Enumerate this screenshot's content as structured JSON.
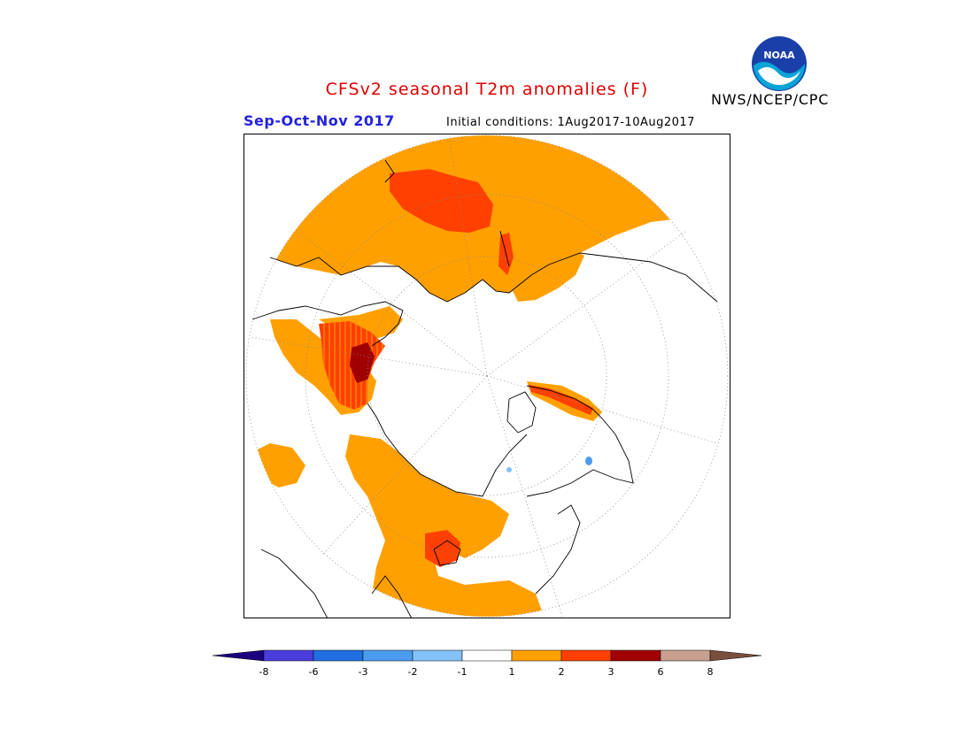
{
  "header": {
    "title": "CFSv2 seasonal T2m anomalies (F)",
    "season": "Sep-Oct-Nov 2017",
    "initial_conditions": "Initial conditions: 1Aug2017-10Aug2017",
    "agency": "NWS/NCEP/CPC",
    "logo_text": "NOAA"
  },
  "map": {
    "projection": "north-polar-stereographic",
    "variable": "2m temperature anomaly",
    "units": "F"
  },
  "colorbar": {
    "tick_labels": [
      "-8",
      "-6",
      "-3",
      "-2",
      "-1",
      "1",
      "2",
      "3",
      "6",
      "8"
    ],
    "colors": {
      "lt_-8": "#1a0080",
      "-8_-6": "#4b3ddc",
      "-6_-3": "#1f6fe0",
      "-3_-2": "#4b9cf0",
      "-2_-1": "#82c2f8",
      "-1_1": "#ffffff",
      "1_2": "#ffa000",
      "2_3": "#ff4000",
      "3_6": "#a00000",
      "6_8": "#c8a090",
      "gt_8": "#7a4e3e"
    }
  }
}
